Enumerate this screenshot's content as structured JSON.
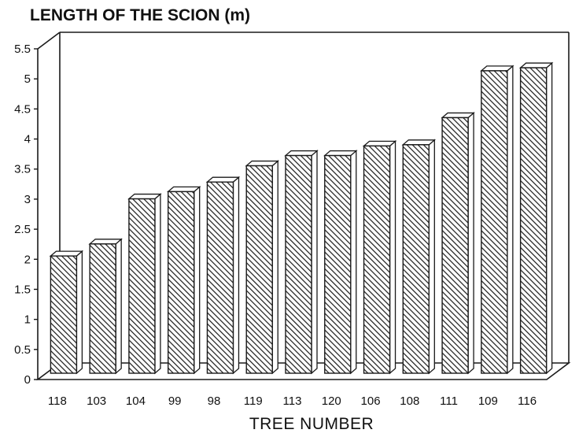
{
  "chart_data": {
    "type": "bar",
    "title": "LENGTH OF THE SCION (m)",
    "xlabel": "TREE NUMBER",
    "ylabel": "",
    "categories": [
      "118",
      "103",
      "104",
      "99",
      "98",
      "119",
      "113",
      "120",
      "106",
      "108",
      "111",
      "109",
      "116"
    ],
    "values": [
      1.95,
      2.15,
      2.9,
      3.02,
      3.18,
      3.45,
      3.62,
      3.62,
      3.78,
      3.8,
      4.25,
      5.03,
      5.08
    ],
    "ylim": [
      0,
      5.5
    ],
    "yticks": [
      "0",
      "0.5",
      "1",
      "1.5",
      "2",
      "2.5",
      "3",
      "3.5",
      "4",
      "4.5",
      "5",
      "5.5"
    ],
    "grid": false,
    "style": "3d-hatched",
    "bar_color": "#1a1a1a",
    "background": "#ffffff"
  }
}
